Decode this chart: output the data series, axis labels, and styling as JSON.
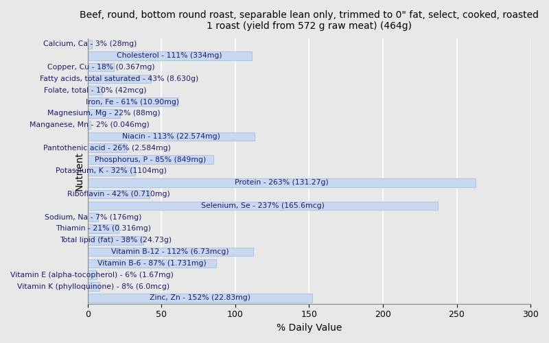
{
  "title": "Beef, round, bottom round roast, separable lean only, trimmed to 0\" fat, select, cooked, roasted\n1 roast (yield from 572 g raw meat) (464g)",
  "xlabel": "% Daily Value",
  "ylabel": "Nutrient",
  "background_color": "#e8e8e8",
  "bar_color": "#c8d8f0",
  "bar_edge_color": "#a0b8d8",
  "nutrients": [
    "Calcium, Ca - 3% (28mg)",
    "Cholesterol - 111% (334mg)",
    "Copper, Cu - 18% (0.367mg)",
    "Fatty acids, total saturated - 43% (8.630g)",
    "Folate, total - 10% (42mcg)",
    "Iron, Fe - 61% (10.90mg)",
    "Magnesium, Mg - 22% (88mg)",
    "Manganese, Mn - 2% (0.046mg)",
    "Niacin - 113% (22.574mg)",
    "Pantothenic acid - 26% (2.584mg)",
    "Phosphorus, P - 85% (849mg)",
    "Potassium, K - 32% (1104mg)",
    "Protein - 263% (131.27g)",
    "Riboflavin - 42% (0.710mg)",
    "Selenium, Se - 237% (165.6mcg)",
    "Sodium, Na - 7% (176mg)",
    "Thiamin - 21% (0.316mg)",
    "Total lipid (fat) - 38% (24.73g)",
    "Vitamin B-12 - 112% (6.73mcg)",
    "Vitamin B-6 - 87% (1.731mg)",
    "Vitamin E (alpha-tocopherol) - 6% (1.67mg)",
    "Vitamin K (phylloquinone) - 8% (6.0mcg)",
    "Zinc, Zn - 152% (22.83mg)"
  ],
  "values": [
    3,
    111,
    18,
    43,
    10,
    61,
    22,
    2,
    113,
    26,
    85,
    32,
    263,
    42,
    237,
    7,
    21,
    38,
    112,
    87,
    6,
    8,
    152
  ],
  "xlim": [
    0,
    300
  ],
  "xticks": [
    0,
    50,
    100,
    150,
    200,
    250,
    300
  ],
  "grid_color": "#ffffff",
  "title_fontsize": 10,
  "label_fontsize": 7.8,
  "tick_fontsize": 9
}
